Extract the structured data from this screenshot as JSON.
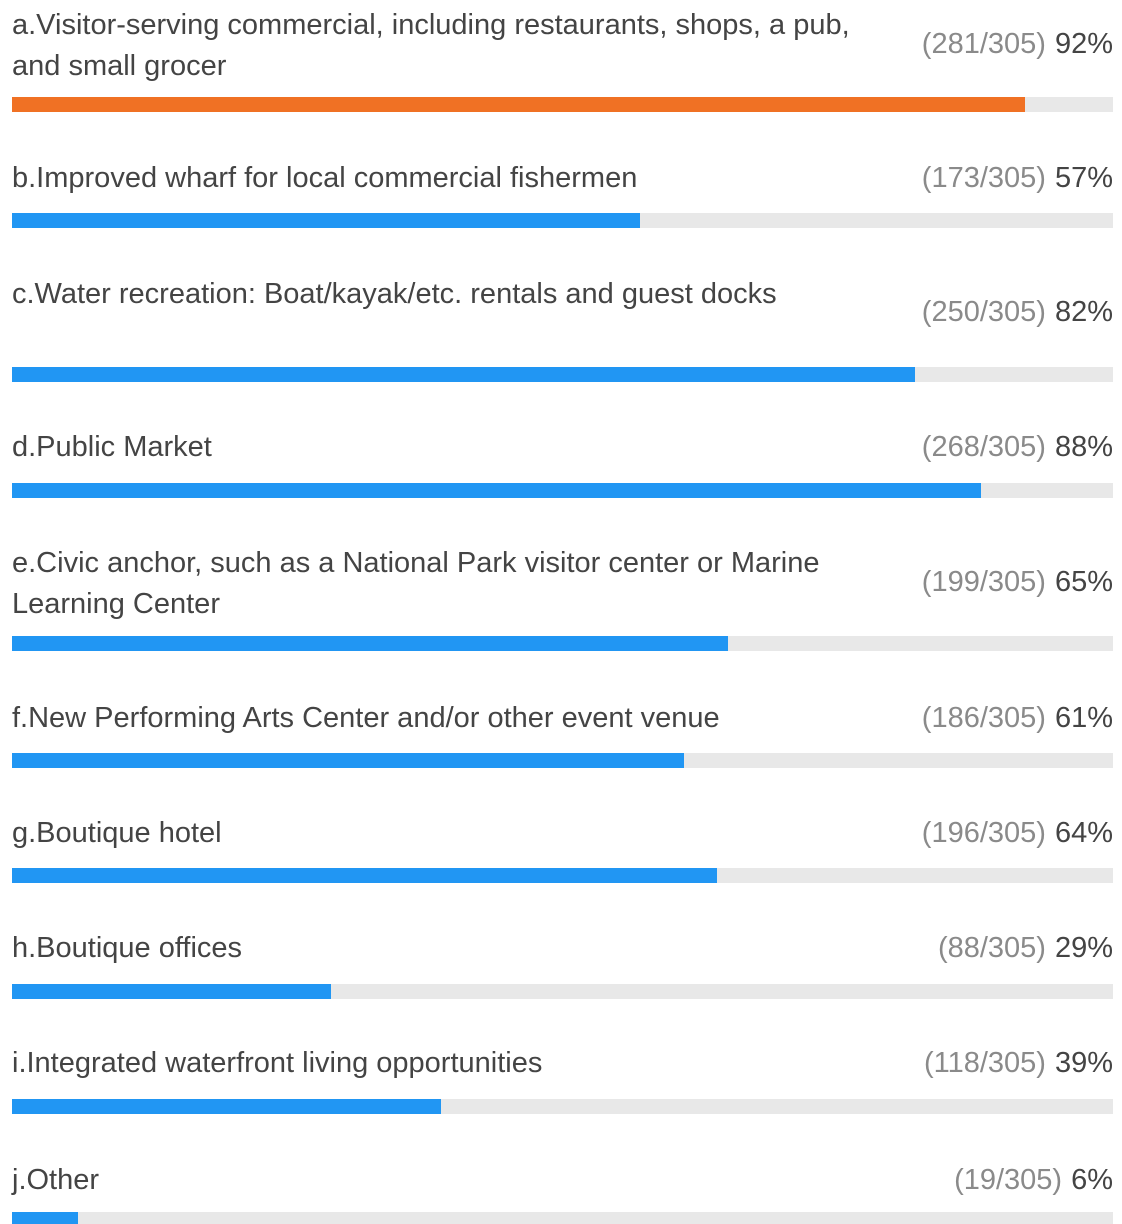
{
  "chart_data": {
    "type": "bar",
    "orientation": "horizontal",
    "categories": [
      "a.Visitor-serving commercial, including restaurants, shops, a pub, and small grocer",
      "b.Improved wharf for local commercial fishermen",
      "c.Water recreation: Boat/kayak/etc. rentals and guest docks",
      "d.Public Market",
      "e.Civic anchor, such as a National Park visitor center or Marine Learning Center",
      "f.New Performing Arts Center and/or other event venue",
      "g.Boutique hotel",
      "h.Boutique offices",
      "i.Integrated waterfront living opportunities",
      "j.Other"
    ],
    "count_labels": [
      "(281/305)",
      "(173/305)",
      "(250/305)",
      "(268/305)",
      "(199/305)",
      "(186/305)",
      "(196/305)",
      "(88/305)",
      "(118/305)",
      "(19/305)"
    ],
    "values": [
      92,
      57,
      82,
      88,
      65,
      61,
      64,
      29,
      39,
      6
    ],
    "value_labels": [
      "92%",
      "57%",
      "82%",
      "88%",
      "65%",
      "61%",
      "64%",
      "29%",
      "39%",
      "6%"
    ],
    "colors": [
      "#f07124",
      "#2196f3",
      "#2196f3",
      "#2196f3",
      "#2196f3",
      "#2196f3",
      "#2196f3",
      "#2196f3",
      "#2196f3",
      "#2196f3"
    ],
    "track_color": "#e8e8e8",
    "xlim": [
      0,
      100
    ]
  }
}
